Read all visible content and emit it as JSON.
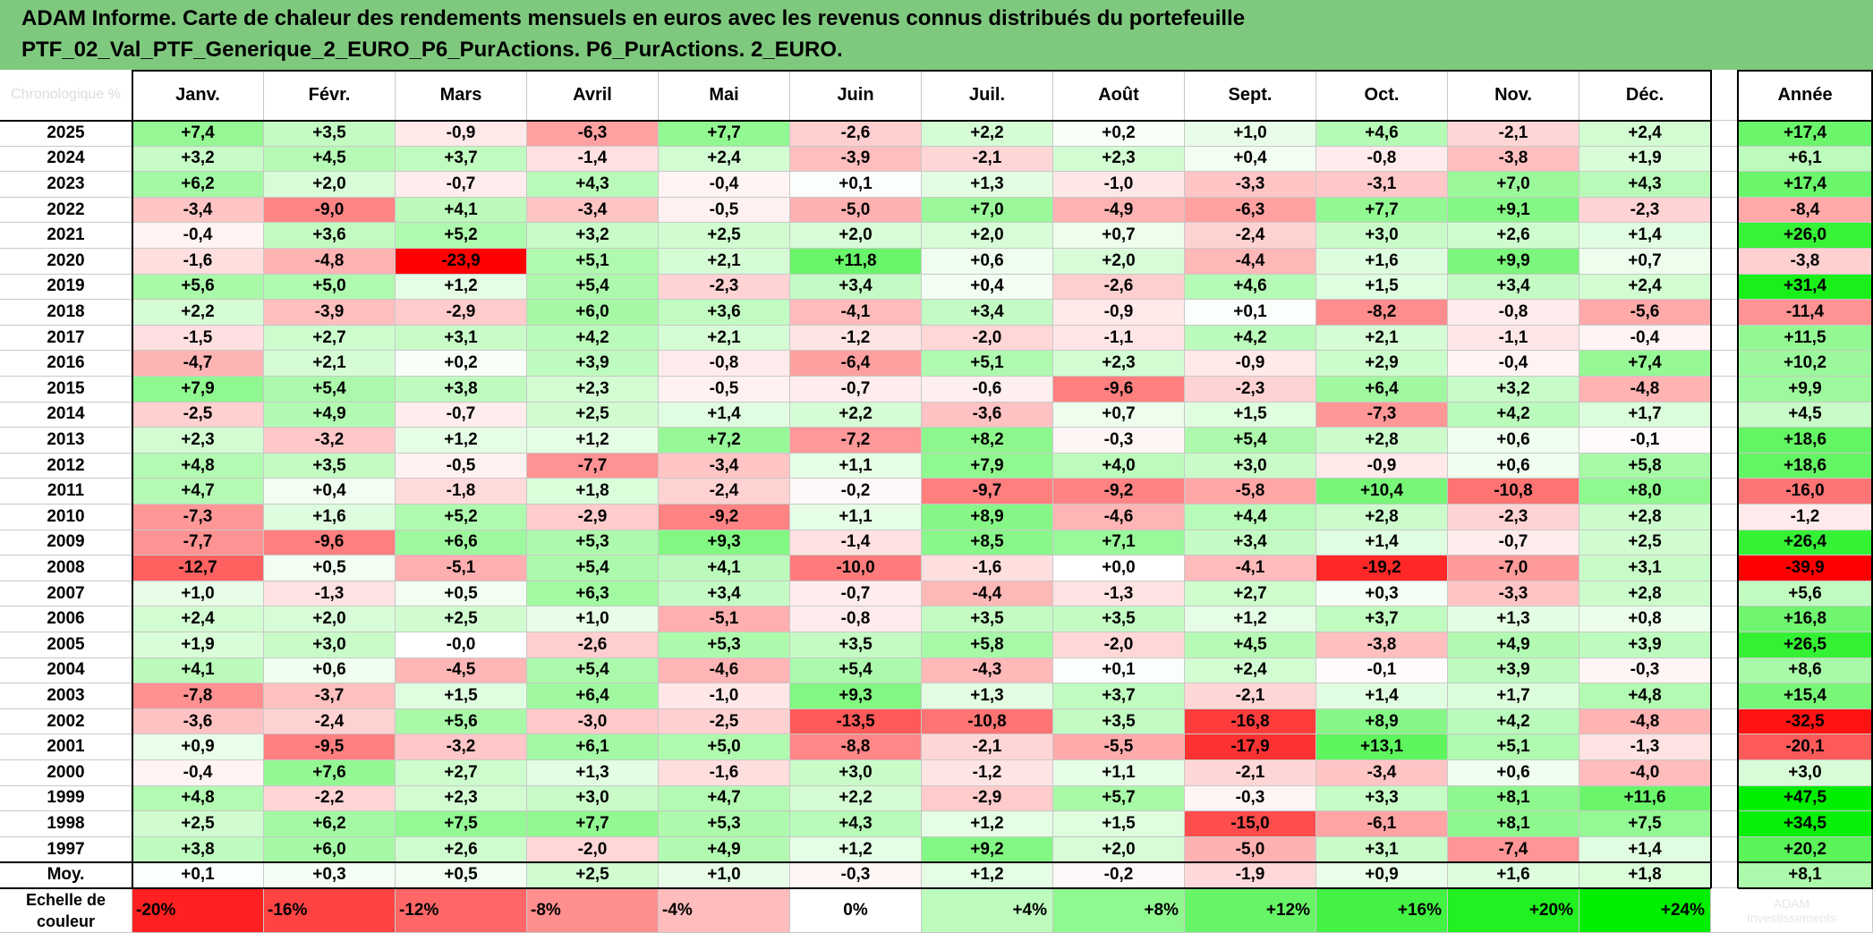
{
  "header": {
    "title_line1": "ADAM Informe. Carte de chaleur des rendements mensuels en euros avec les revenus connus distribués du portefeuille",
    "title_line2": "PTF_02_Val_PTF_Generique_2_EURO_P6_PurActions. P6_PurActions. 2_EURO."
  },
  "corner_label": "Chronologique %",
  "colors": {
    "header_bg": "#7fc97f",
    "neg_max": "#ff0000",
    "pos_max": "#00ee00",
    "neutral": "#ffffff"
  },
  "chart_data": {
    "type": "heatmap",
    "months": [
      "Janv.",
      "Févr.",
      "Mars",
      "Avril",
      "Mai",
      "Juin",
      "Juil.",
      "Août",
      "Sept.",
      "Oct.",
      "Nov.",
      "Déc."
    ],
    "year_col_label": "Année",
    "rows": [
      {
        "year": "2025",
        "values": [
          "+7,4",
          "+3,5",
          "-0,9",
          "-6,3",
          "+7,7",
          "-2,6",
          "+2,2",
          "+0,2",
          "+1,0",
          "+4,6",
          "-2,1",
          "+2,4"
        ],
        "annual": "+17,4"
      },
      {
        "year": "2024",
        "values": [
          "+3,2",
          "+4,5",
          "+3,7",
          "-1,4",
          "+2,4",
          "-3,9",
          "-2,1",
          "+2,3",
          "+0,4",
          "-0,8",
          "-3,8",
          "+1,9"
        ],
        "annual": "+6,1"
      },
      {
        "year": "2023",
        "values": [
          "+6,2",
          "+2,0",
          "-0,7",
          "+4,3",
          "-0,4",
          "+0,1",
          "+1,3",
          "-1,0",
          "-3,3",
          "-3,1",
          "+7,0",
          "+4,3"
        ],
        "annual": "+17,4"
      },
      {
        "year": "2022",
        "values": [
          "-3,4",
          "-9,0",
          "+4,1",
          "-3,4",
          "-0,5",
          "-5,0",
          "+7,0",
          "-4,9",
          "-6,3",
          "+7,7",
          "+9,1",
          "-2,3"
        ],
        "annual": "-8,4"
      },
      {
        "year": "2021",
        "values": [
          "-0,4",
          "+3,6",
          "+5,2",
          "+3,2",
          "+2,5",
          "+2,0",
          "+2,0",
          "+0,7",
          "-2,4",
          "+3,0",
          "+2,6",
          "+1,4"
        ],
        "annual": "+26,0"
      },
      {
        "year": "2020",
        "values": [
          "-1,6",
          "-4,8",
          "-23,9",
          "+5,1",
          "+2,1",
          "+11,8",
          "+0,6",
          "+2,0",
          "-4,4",
          "+1,6",
          "+9,9",
          "+0,7"
        ],
        "annual": "-3,8"
      },
      {
        "year": "2019",
        "values": [
          "+5,6",
          "+5,0",
          "+1,2",
          "+5,4",
          "-2,3",
          "+3,4",
          "+0,4",
          "-2,6",
          "+4,6",
          "+1,5",
          "+3,4",
          "+2,4"
        ],
        "annual": "+31,4"
      },
      {
        "year": "2018",
        "values": [
          "+2,2",
          "-3,9",
          "-2,9",
          "+6,0",
          "+3,6",
          "-4,1",
          "+3,4",
          "-0,9",
          "+0,1",
          "-8,2",
          "-0,8",
          "-5,6"
        ],
        "annual": "-11,4"
      },
      {
        "year": "2017",
        "values": [
          "-1,5",
          "+2,7",
          "+3,1",
          "+4,2",
          "+2,1",
          "-1,2",
          "-2,0",
          "-1,1",
          "+4,2",
          "+2,1",
          "-1,1",
          "-0,4"
        ],
        "annual": "+11,5"
      },
      {
        "year": "2016",
        "values": [
          "-4,7",
          "+2,1",
          "+0,2",
          "+3,9",
          "-0,8",
          "-6,4",
          "+5,1",
          "+2,3",
          "-0,9",
          "+2,9",
          "-0,4",
          "+7,4"
        ],
        "annual": "+10,2"
      },
      {
        "year": "2015",
        "values": [
          "+7,9",
          "+5,4",
          "+3,8",
          "+2,3",
          "-0,5",
          "-0,7",
          "-0,6",
          "-9,6",
          "-2,3",
          "+6,4",
          "+3,2",
          "-4,8"
        ],
        "annual": "+9,9"
      },
      {
        "year": "2014",
        "values": [
          "-2,5",
          "+4,9",
          "-0,7",
          "+2,5",
          "+1,4",
          "+2,2",
          "-3,6",
          "+0,7",
          "+1,5",
          "-7,3",
          "+4,2",
          "+1,7"
        ],
        "annual": "+4,5"
      },
      {
        "year": "2013",
        "values": [
          "+2,3",
          "-3,2",
          "+1,2",
          "+1,2",
          "+7,2",
          "-7,2",
          "+8,2",
          "-0,3",
          "+5,4",
          "+2,8",
          "+0,6",
          "-0,1"
        ],
        "annual": "+18,6"
      },
      {
        "year": "2012",
        "values": [
          "+4,8",
          "+3,5",
          "-0,5",
          "-7,7",
          "-3,4",
          "+1,1",
          "+7,9",
          "+4,0",
          "+3,0",
          "-0,9",
          "+0,6",
          "+5,8"
        ],
        "annual": "+18,6"
      },
      {
        "year": "2011",
        "values": [
          "+4,7",
          "+0,4",
          "-1,8",
          "+1,8",
          "-2,4",
          "-0,2",
          "-9,7",
          "-9,2",
          "-5,8",
          "+10,4",
          "-10,8",
          "+8,0"
        ],
        "annual": "-16,0"
      },
      {
        "year": "2010",
        "values": [
          "-7,3",
          "+1,6",
          "+5,2",
          "-2,9",
          "-9,2",
          "+1,1",
          "+8,9",
          "-4,6",
          "+4,4",
          "+2,8",
          "-2,3",
          "+2,8"
        ],
        "annual": "-1,2"
      },
      {
        "year": "2009",
        "values": [
          "-7,7",
          "-9,6",
          "+6,6",
          "+5,3",
          "+9,3",
          "-1,4",
          "+8,5",
          "+7,1",
          "+3,4",
          "+1,4",
          "-0,7",
          "+2,5"
        ],
        "annual": "+26,4"
      },
      {
        "year": "2008",
        "values": [
          "-12,7",
          "+0,5",
          "-5,1",
          "+5,4",
          "+4,1",
          "-10,0",
          "-1,6",
          "+0,0",
          "-4,1",
          "-19,2",
          "-7,0",
          "+3,1"
        ],
        "annual": "-39,9"
      },
      {
        "year": "2007",
        "values": [
          "+1,0",
          "-1,3",
          "+0,5",
          "+6,3",
          "+3,4",
          "-0,7",
          "-4,4",
          "-1,3",
          "+2,7",
          "+0,3",
          "-3,3",
          "+2,8"
        ],
        "annual": "+5,6"
      },
      {
        "year": "2006",
        "values": [
          "+2,4",
          "+2,0",
          "+2,5",
          "+1,0",
          "-5,1",
          "-0,8",
          "+3,5",
          "+3,5",
          "+1,2",
          "+3,7",
          "+1,3",
          "+0,8"
        ],
        "annual": "+16,8"
      },
      {
        "year": "2005",
        "values": [
          "+1,9",
          "+3,0",
          "-0,0",
          "-2,6",
          "+5,3",
          "+3,5",
          "+5,8",
          "-2,0",
          "+4,5",
          "-3,8",
          "+4,9",
          "+3,9"
        ],
        "annual": "+26,5"
      },
      {
        "year": "2004",
        "values": [
          "+4,1",
          "+0,6",
          "-4,5",
          "+5,4",
          "-4,6",
          "+5,4",
          "-4,3",
          "+0,1",
          "+2,4",
          "-0,1",
          "+3,9",
          "-0,3"
        ],
        "annual": "+8,6"
      },
      {
        "year": "2003",
        "values": [
          "-7,8",
          "-3,7",
          "+1,5",
          "+6,4",
          "-1,0",
          "+9,3",
          "+1,3",
          "+3,7",
          "-2,1",
          "+1,4",
          "+1,7",
          "+4,8"
        ],
        "annual": "+15,4"
      },
      {
        "year": "2002",
        "values": [
          "-3,6",
          "-2,4",
          "+5,6",
          "-3,0",
          "-2,5",
          "-13,5",
          "-10,8",
          "+3,5",
          "-16,8",
          "+8,9",
          "+4,2",
          "-4,8"
        ],
        "annual": "-32,5"
      },
      {
        "year": "2001",
        "values": [
          "+0,9",
          "-9,5",
          "-3,2",
          "+6,1",
          "+5,0",
          "-8,8",
          "-2,1",
          "-5,5",
          "-17,9",
          "+13,1",
          "+5,1",
          "-1,3"
        ],
        "annual": "-20,1"
      },
      {
        "year": "2000",
        "values": [
          "-0,4",
          "+7,6",
          "+2,7",
          "+1,3",
          "-1,6",
          "+3,0",
          "-1,2",
          "+1,1",
          "-2,1",
          "-3,4",
          "+0,6",
          "-4,0"
        ],
        "annual": "+3,0"
      },
      {
        "year": "1999",
        "values": [
          "+4,8",
          "-2,2",
          "+2,3",
          "+3,0",
          "+4,7",
          "+2,2",
          "-2,9",
          "+5,7",
          "-0,3",
          "+3,3",
          "+8,1",
          "+11,6"
        ],
        "annual": "+47,5"
      },
      {
        "year": "1998",
        "values": [
          "+2,5",
          "+6,2",
          "+7,5",
          "+7,7",
          "+5,3",
          "+4,3",
          "+1,2",
          "+1,5",
          "-15,0",
          "-6,1",
          "+8,1",
          "+7,5"
        ],
        "annual": "+34,5"
      },
      {
        "year": "1997",
        "values": [
          "+3,8",
          "+6,0",
          "+2,6",
          "-2,0",
          "+4,9",
          "+1,2",
          "+9,2",
          "+2,0",
          "-5,0",
          "+3,1",
          "-7,4",
          "+1,4"
        ],
        "annual": "+20,2"
      }
    ],
    "average": {
      "label": "Moy.",
      "values": [
        "+0,1",
        "+0,3",
        "+0,5",
        "+2,5",
        "+1,0",
        "-0,3",
        "+1,2",
        "-0,2",
        "-1,9",
        "+0,9",
        "+1,6",
        "+1,8"
      ],
      "annual": "+8,1"
    },
    "color_scale": {
      "title_line1": "Echelle de",
      "title_line2": "couleur",
      "stops": [
        "-20%",
        "-16%",
        "-12%",
        "-8%",
        "-4%",
        "0%",
        "+4%",
        "+8%",
        "+12%",
        "+16%",
        "+20%",
        "+24%"
      ],
      "stop_values": [
        -20,
        -16,
        -12,
        -8,
        -4,
        0,
        4,
        8,
        12,
        16,
        20,
        24
      ],
      "faint_note_line1": "ADAM",
      "faint_note_line2": "Investissements"
    }
  }
}
